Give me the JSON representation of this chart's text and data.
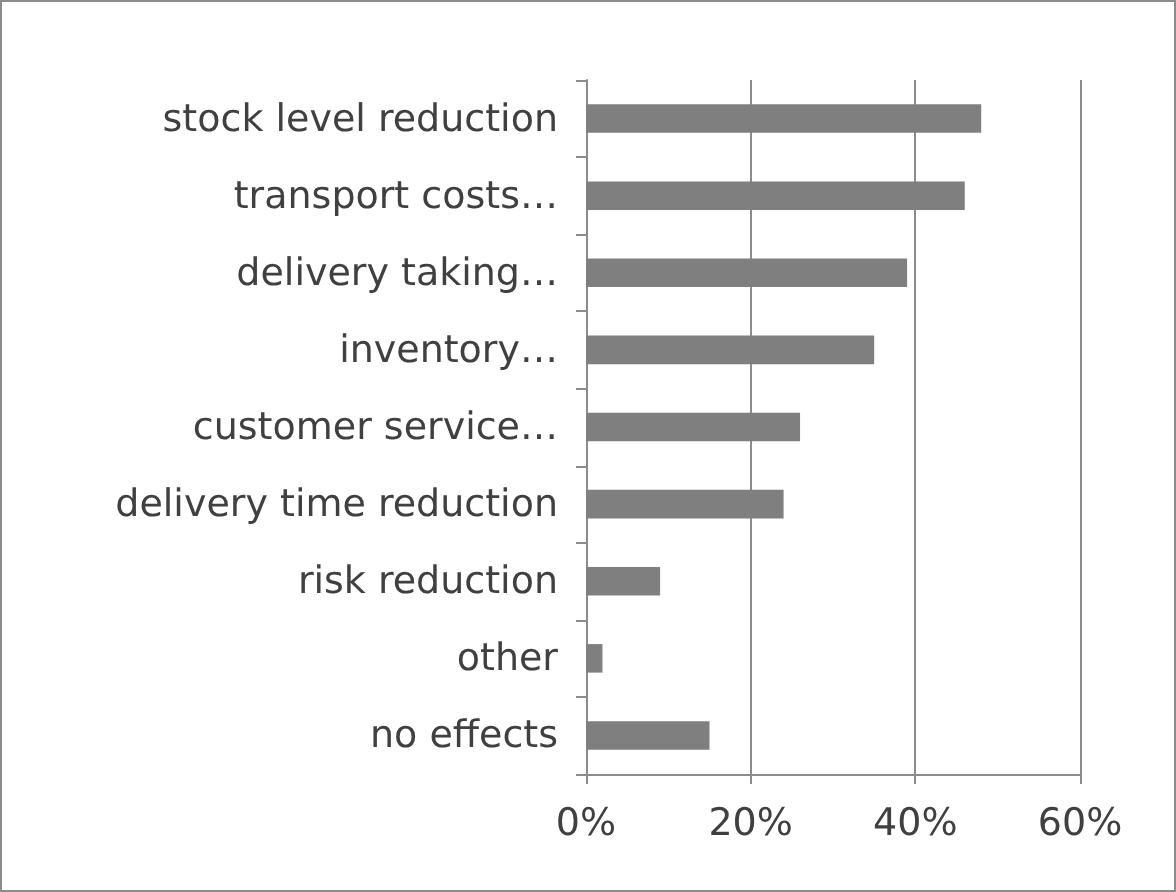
{
  "chart_data": {
    "type": "bar",
    "orientation": "horizontal",
    "categories": [
      "stock level reduction",
      "transport costs…",
      "delivery taking…",
      "inventory…",
      "customer service…",
      "delivery time reduction",
      "risk reduction",
      "other",
      "no effects"
    ],
    "values": [
      48,
      46,
      39,
      35,
      26,
      24,
      9,
      2,
      15
    ],
    "color": "#7f7f7f",
    "xlim": [
      0,
      60
    ],
    "xticks": [
      {
        "value": 0,
        "label": "0%"
      },
      {
        "value": 20,
        "label": "20%"
      },
      {
        "value": 40,
        "label": "40%"
      },
      {
        "value": 60,
        "label": "60%"
      }
    ],
    "grid": "x"
  }
}
